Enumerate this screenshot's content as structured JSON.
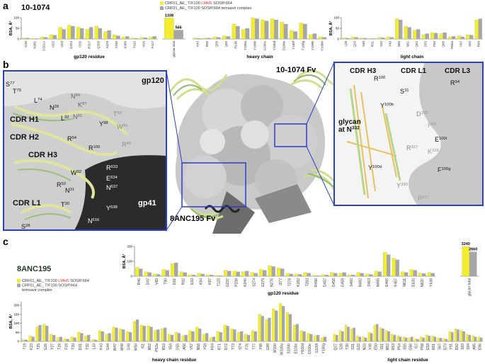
{
  "figure": {
    "panel_a": {
      "label": "a",
      "title": "10-1074",
      "legend": [
        {
          "color": "#f2ee2e",
          "lines": [
            [
              "CRF01_AE_ T/F100 ",
              {
                "text": "LMHS",
                "color": "#e8261f"
              },
              " SOSIP.664"
            ]
          ]
        },
        {
          "color": "#a6a6a6",
          "lines": [
            [
              "CRF01_AE_ T/F100 SOSIP.664 temsavir complex"
            ]
          ]
        }
      ]
    },
    "panel_b": {
      "label": "b",
      "center_labels": [
        "10-1074 Fv",
        "8ANC195 Fv"
      ],
      "left_inset": [
        {
          "text": "gp120"
        },
        {
          "text": "S",
          "sup": "77"
        },
        {
          "text": "T",
          "sup": "75"
        },
        {
          "text": "L",
          "sup": "74"
        },
        {
          "text": "N",
          "sup": "28"
        },
        {
          "text": "N",
          "sup": "84",
          "color": "#666666"
        },
        {
          "text": "K",
          "sup": "87",
          "color": "#666666"
        },
        {
          "text": "L",
          "sup": "32"
        },
        {
          "text": "N",
          "sup": "82",
          "color": "#666666"
        },
        {
          "text": "T",
          "sup": "83",
          "color": "#888888"
        },
        {
          "text": "CDR H1"
        },
        {
          "text": "Y",
          "sup": "98"
        },
        {
          "text": "W",
          "sup": "45",
          "color": "#888888"
        },
        {
          "text": "CDR H2"
        },
        {
          "text": "R",
          "sup": "54"
        },
        {
          "text": "R",
          "sup": "46",
          "color": "#888888"
        },
        {
          "text": "R",
          "sup": "100"
        },
        {
          "text": "CDR H3"
        },
        {
          "text": "W",
          "sup": "32"
        },
        {
          "text": "R",
          "sup": "633",
          "color": "#ffffff"
        },
        {
          "text": "E",
          "sup": "634",
          "color": "#ffffff"
        },
        {
          "text": "R",
          "sup": "50"
        },
        {
          "text": "N",
          "sup": "31"
        },
        {
          "text": "N",
          "sup": "637",
          "color": "#ffffff"
        },
        {
          "text": "CDR L1"
        },
        {
          "text": "T",
          "sup": "30"
        },
        {
          "text": "Y",
          "sup": "638",
          "color": "#ffffff"
        },
        {
          "text": "gp41",
          "color": "#ffffff"
        },
        {
          "text": "S",
          "sup": "28"
        },
        {
          "text": "N",
          "sup": "616",
          "color": "#ffffff"
        }
      ],
      "right_inset": [
        {
          "text": "CDR H3"
        },
        {
          "text": "CDR L1"
        },
        {
          "text": "CDR L3"
        },
        {
          "text": "R",
          "sup": "100"
        },
        {
          "text": "R",
          "sup": "94"
        },
        {
          "text": "S",
          "sup": "31"
        },
        {
          "text": "Y",
          "sup": "100b"
        },
        {
          "text": "D",
          "sup": "325",
          "color": "#888888"
        },
        {
          "text": "I",
          "sup": "326",
          "color": "#999999"
        },
        {
          "text": "E",
          "sup": "100i"
        },
        {
          "text": "glycan"
        },
        {
          "text": "at N",
          "sup": "332"
        },
        {
          "text": "R",
          "sup": "327",
          "color": "#888888"
        },
        {
          "text": "K",
          "sup": "328",
          "color": "#999999"
        },
        {
          "text": "F",
          "sup": "100g"
        },
        {
          "text": "Y",
          "sup": "100d"
        },
        {
          "text": "Y",
          "sup": "330",
          "color": "#888888"
        },
        {
          "text": "P",
          "sup": "417",
          "color": "#999999"
        }
      ]
    },
    "panel_c": {
      "label": "c",
      "title": "8ANC195",
      "legend": [
        {
          "color": "#f2ee2e",
          "lines": [
            [
              "CRF01_AE_ T/F100 ",
              {
                "text": "LMHS",
                "color": "#e8261f"
              },
              " SOSIP.664"
            ]
          ]
        },
        {
          "color": "#a6a6a6",
          "lines": [
            [
              "CRF01_AE_ T/F100 SOSIP.664"
            ],
            [
              "temsavir complex"
            ]
          ]
        }
      ]
    }
  },
  "chart_data": [
    {
      "type": "bar",
      "x_label": "gp120 residue",
      "y_label": "BSA, Å²",
      "categories": [
        "I150",
        "N301",
        "D321A",
        "I322",
        "I323",
        "G324",
        "I326",
        "R327",
        "Q328",
        "A329",
        "Y330",
        "K389",
        "T415",
        "I416",
        "P417"
      ],
      "series": [
        {
          "color": "#f2ee2e",
          "values": [
            5,
            3,
            10,
            20,
            55,
            65,
            55,
            45,
            60,
            35,
            20,
            10,
            5,
            8,
            10
          ]
        },
        {
          "color": "#a6a6a6",
          "values": [
            4,
            2,
            8,
            18,
            45,
            60,
            50,
            55,
            50,
            40,
            15,
            12,
            3,
            6,
            12
          ]
        }
      ],
      "ylim": [
        0,
        100
      ],
      "yticks": [
        0,
        50,
        100
      ]
    },
    {
      "type": "bar",
      "categories": [
        "glycan total"
      ],
      "data_labels": true,
      "series": [
        {
          "color": "#f2ee2e",
          "values": [
            1338
          ]
        },
        {
          "color": "#a6a6a6",
          "values": [
            566
          ]
        }
      ],
      "ylim": [
        0,
        1400
      ]
    },
    {
      "type": "bar",
      "x_label": "heavy chain",
      "categories": [
        "K43",
        "R56",
        "Q58",
        "Q65",
        "R100",
        "Y100a",
        "Y100b",
        "G100c",
        "Y100d",
        "D100e",
        "Y100f",
        "F100g",
        "Y100h",
        "Y100M"
      ],
      "series": [
        {
          "color": "#f2ee2e",
          "values": [
            5,
            5,
            10,
            15,
            70,
            45,
            100,
            90,
            95,
            80,
            40,
            75,
            20,
            10
          ]
        },
        {
          "color": "#a6a6a6",
          "values": [
            3,
            4,
            8,
            12,
            60,
            50,
            95,
            85,
            90,
            70,
            35,
            70,
            25,
            8
          ]
        }
      ],
      "ylim": [
        0,
        100
      ]
    },
    {
      "type": "bar",
      "x_label": "light chain",
      "y_label": "BSA, Å²",
      "categories": [
        "L28",
        "Q29",
        "S30",
        "R31",
        "A32",
        "Y49",
        "N50",
        "N51",
        "Q52",
        "D53",
        "P56",
        "Q66",
        "R66a",
        "F67",
        "S93",
        "R94"
      ],
      "series": [
        {
          "color": "#f2ee2e",
          "values": [
            5,
            10,
            5,
            3,
            8,
            10,
            95,
            60,
            40,
            20,
            30,
            25,
            10,
            15,
            20,
            90
          ]
        },
        {
          "color": "#a6a6a6",
          "values": [
            4,
            8,
            4,
            2,
            6,
            8,
            90,
            55,
            45,
            25,
            28,
            30,
            12,
            10,
            18,
            95
          ]
        }
      ],
      "ylim": [
        0,
        100
      ],
      "yticks": [
        0,
        50,
        100
      ]
    },
    {
      "type": "bar",
      "x_label": "gp120 residue",
      "y_label": "BSA, Å²",
      "categories": [
        "R46",
        "D47",
        "V89",
        "T90",
        "E91",
        "R92",
        "E93",
        "K94",
        "K97",
        "T123",
        "G237",
        "P238",
        "K240",
        "S274",
        "E275",
        "N276",
        "I277",
        "T278",
        "K282",
        "T283",
        "R456",
        "D457",
        "G458",
        "G459",
        "S460",
        "N462",
        "S463",
        "N465",
        "E466",
        "K467",
        "N611",
        "E620",
        "N637",
        "Y638"
      ],
      "series": [
        {
          "color": "#f2ee2e",
          "values": [
            60,
            30,
            15,
            45,
            85,
            30,
            10,
            20,
            10,
            5,
            40,
            35,
            30,
            25,
            45,
            70,
            55,
            20,
            15,
            25,
            5,
            10,
            25,
            20,
            10,
            25,
            15,
            35,
            160,
            120,
            30,
            45,
            20,
            25
          ]
        },
        {
          "color": "#a6a6a6",
          "values": [
            50,
            25,
            12,
            40,
            90,
            25,
            8,
            15,
            8,
            4,
            35,
            30,
            35,
            20,
            40,
            65,
            50,
            15,
            12,
            20,
            4,
            8,
            20,
            25,
            8,
            20,
            12,
            30,
            145,
            110,
            25,
            40,
            18,
            20
          ]
        }
      ],
      "ylim": [
        0,
        200
      ],
      "yticks": [
        0,
        100,
        200
      ]
    },
    {
      "type": "bar",
      "categories": [
        "glycan total"
      ],
      "data_labels": true,
      "series": [
        {
          "color": "#f2ee2e",
          "values": [
            3240
          ]
        },
        {
          "color": "#a6a6a6",
          "values": [
            2660
          ]
        }
      ],
      "ylim": [
        0,
        3400
      ]
    },
    {
      "type": "bar",
      "x_label": "heavy chain residue",
      "y_label": "BSA, Å²",
      "categories": [
        "T19",
        "K23",
        "T25",
        "G26",
        "Y27",
        "T28",
        "F29",
        "T30",
        "D31",
        "Y32",
        "L33",
        "K43",
        "G44",
        "W47",
        "M48",
        "G49",
        "W50",
        "I51",
        "N52",
        "P52a",
        "R53",
        "S54",
        "G55",
        "A56",
        "V57",
        "N58",
        "Y59",
        "K64",
        "R71",
        "D72",
        "T73",
        "S74",
        "F76",
        "T77",
        "Y98",
        "G99",
        "W100",
        "W100a",
        "S100b",
        "E100c",
        "H100d",
        "D100e",
        "G100f",
        "Y100g"
      ],
      "series": [
        {
          "color": "#f2ee2e",
          "values": [
            10,
            30,
            80,
            95,
            40,
            20,
            15,
            25,
            50,
            30,
            10,
            60,
            40,
            80,
            70,
            55,
            110,
            90,
            85,
            60,
            70,
            40,
            50,
            30,
            60,
            80,
            40,
            20,
            55,
            90,
            70,
            50,
            40,
            60,
            150,
            120,
            180,
            210,
            160,
            90,
            60,
            45,
            30,
            20
          ]
        },
        {
          "color": "#a6a6a6",
          "values": [
            8,
            25,
            90,
            85,
            35,
            25,
            12,
            20,
            45,
            35,
            8,
            55,
            45,
            75,
            65,
            50,
            120,
            85,
            80,
            65,
            75,
            35,
            45,
            35,
            55,
            70,
            45,
            25,
            50,
            85,
            65,
            55,
            35,
            55,
            140,
            130,
            170,
            195,
            150,
            95,
            55,
            40,
            35,
            25
          ]
        }
      ],
      "ylim": [
        0,
        220
      ],
      "yticks": [
        0,
        50,
        100,
        150,
        200
      ]
    },
    {
      "type": "bar",
      "x_label": "light chain residue",
      "categories": [
        "Q27",
        "S28",
        "T30",
        "S31",
        "G32",
        "N33",
        "Y49",
        "E50",
        "S51",
        "N52",
        "R53",
        "P54",
        "S55",
        "G56",
        "I57",
        "P58",
        "E59",
        "R61",
        "S67",
        "D70",
        "Y91",
        "D92",
        "S93",
        "S94",
        "A95",
        "E96"
      ],
      "series": [
        {
          "color": "#f2ee2e",
          "values": [
            40,
            60,
            90,
            70,
            30,
            25,
            50,
            90,
            75,
            60,
            40,
            30,
            25,
            20,
            15,
            25,
            35,
            30,
            20,
            15,
            55,
            70,
            60,
            40,
            30,
            25
          ]
        },
        {
          "color": "#a6a6a6",
          "values": [
            35,
            55,
            80,
            75,
            25,
            20,
            45,
            95,
            70,
            55,
            35,
            25,
            20,
            25,
            12,
            20,
            30,
            25,
            18,
            12,
            50,
            65,
            55,
            35,
            25,
            20
          ]
        }
      ],
      "ylim": [
        0,
        220
      ]
    }
  ]
}
